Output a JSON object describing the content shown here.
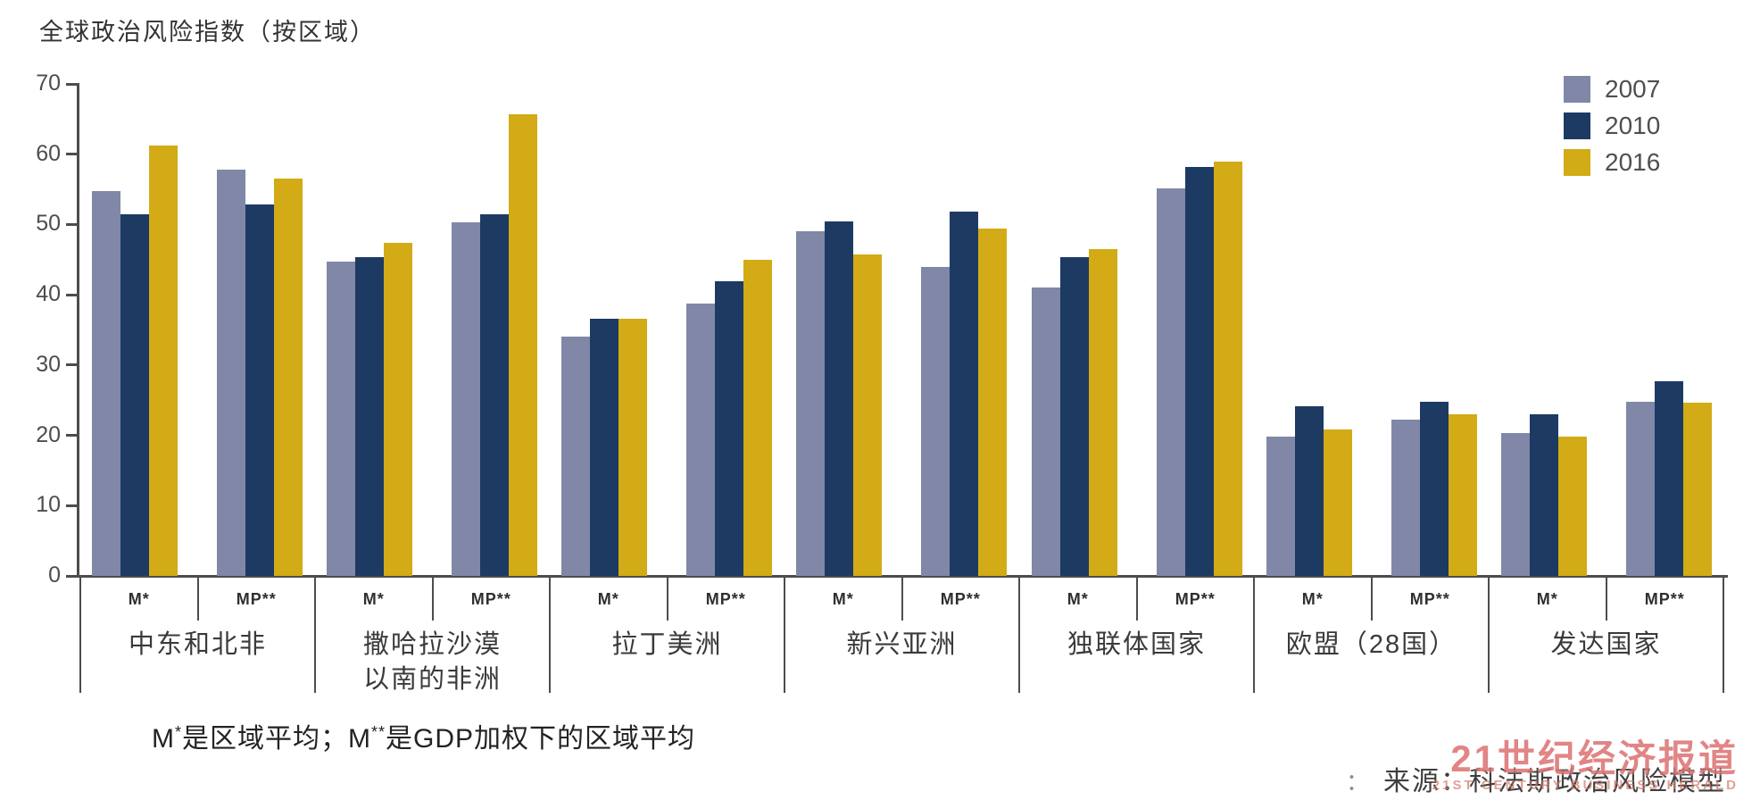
{
  "title": "全球政治风险指数（按区域）",
  "chart_data": {
    "type": "bar",
    "title": "全球政治风险指数（按区域）",
    "ylim": [
      0,
      70
    ],
    "yticks": [
      0,
      10,
      20,
      30,
      40,
      50,
      60,
      70
    ],
    "grid": false,
    "legend_position": "top-right",
    "axis_color": "#4d4d4d",
    "series": [
      {
        "name": "2007",
        "color": "#8187a6"
      },
      {
        "name": "2010",
        "color": "#1d3a63"
      },
      {
        "name": "2016",
        "color": "#d2ab16"
      }
    ],
    "group_labels": [
      "M*",
      "MP**"
    ],
    "regions": [
      {
        "name": "中东和北非",
        "display": "中东和北非",
        "groups": [
          {
            "label": "M*",
            "values": [
              54.7,
              51.4,
              61.2
            ]
          },
          {
            "label": "MP**",
            "values": [
              57.8,
              52.9,
              56.5
            ]
          }
        ]
      },
      {
        "name": "撒哈拉沙漠以南的非洲",
        "display": "撒哈拉沙漠\n以南的非洲",
        "groups": [
          {
            "label": "M*",
            "values": [
              44.7,
              45.3,
              47.4
            ]
          },
          {
            "label": "MP**",
            "values": [
              50.3,
              51.5,
              65.7
            ]
          }
        ]
      },
      {
        "name": "拉丁美洲",
        "display": "拉丁美洲",
        "groups": [
          {
            "label": "M*",
            "values": [
              34.0,
              36.6,
              36.6
            ]
          },
          {
            "label": "MP**",
            "values": [
              38.7,
              41.9,
              45.0
            ]
          }
        ]
      },
      {
        "name": "新兴亚洲",
        "display": "新兴亚洲",
        "groups": [
          {
            "label": "M*",
            "values": [
              49.0,
              50.4,
              45.7
            ]
          },
          {
            "label": "MP**",
            "values": [
              44.0,
              51.9,
              49.4
            ]
          }
        ]
      },
      {
        "name": "独联体国家",
        "display": "独联体国家",
        "groups": [
          {
            "label": "M*",
            "values": [
              41.1,
              45.3,
              46.5
            ]
          },
          {
            "label": "MP**",
            "values": [
              55.1,
              58.2,
              59.0
            ]
          }
        ]
      },
      {
        "name": "欧盟（28国）",
        "display": "欧盟（28国）",
        "groups": [
          {
            "label": "M*",
            "values": [
              19.8,
              24.1,
              20.9
            ]
          },
          {
            "label": "MP**",
            "values": [
              22.2,
              24.8,
              23.0
            ]
          }
        ]
      },
      {
        "name": "发达国家",
        "display": "发达国家",
        "groups": [
          {
            "label": "M*",
            "values": [
              20.3,
              23.0,
              19.8
            ]
          },
          {
            "label": "MP**",
            "values": [
              24.8,
              27.7,
              24.6
            ]
          }
        ]
      }
    ]
  },
  "footnote": {
    "m1": "M",
    "sup1": "*",
    "mid": "是区域平均；M",
    "sup2": "**",
    "end": "是GDP加权下的区域平均"
  },
  "source": {
    "prefix": "：",
    "text": "来源：科法斯政治风险模型"
  },
  "watermark": {
    "line1": "21世纪经济报道",
    "line2": "21ST CENTURY BUSINESS HERALD"
  }
}
